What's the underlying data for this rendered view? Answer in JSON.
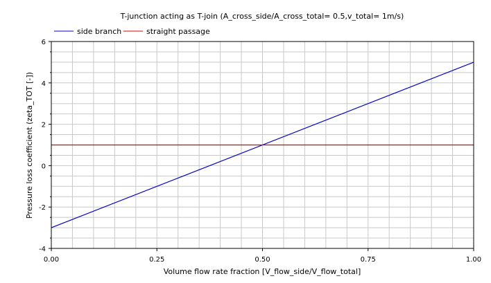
{
  "chart_data": {
    "type": "line",
    "title": "T-junction acting as T-join (A_cross_side/A_cross_total= 0.5,v_total= 1m/s)",
    "xlabel": "Volume flow rate fraction [V_flow_side/V_flow_total]",
    "ylabel": "Pressure loss coefficient (zeta_TOT [-])",
    "xlim": [
      0,
      1
    ],
    "ylim": [
      -4,
      6
    ],
    "x_ticks": [
      "0.00",
      "0.25",
      "0.50",
      "0.75",
      "1.00"
    ],
    "x_tick_values": [
      0,
      0.25,
      0.5,
      0.75,
      1
    ],
    "y_ticks": [
      "-4",
      "-2",
      "0",
      "2",
      "4",
      "6"
    ],
    "y_tick_values": [
      -4,
      -2,
      0,
      2,
      4,
      6
    ],
    "grid": true,
    "legend_position": "top-left, above plot",
    "series": [
      {
        "name": "side branch",
        "color": "#0000c8",
        "x": [
          0,
          1
        ],
        "y": [
          -3,
          5
        ]
      },
      {
        "name": "straight passage",
        "color": "#e00000",
        "x": [
          0,
          1
        ],
        "y": [
          1,
          1
        ]
      }
    ]
  }
}
